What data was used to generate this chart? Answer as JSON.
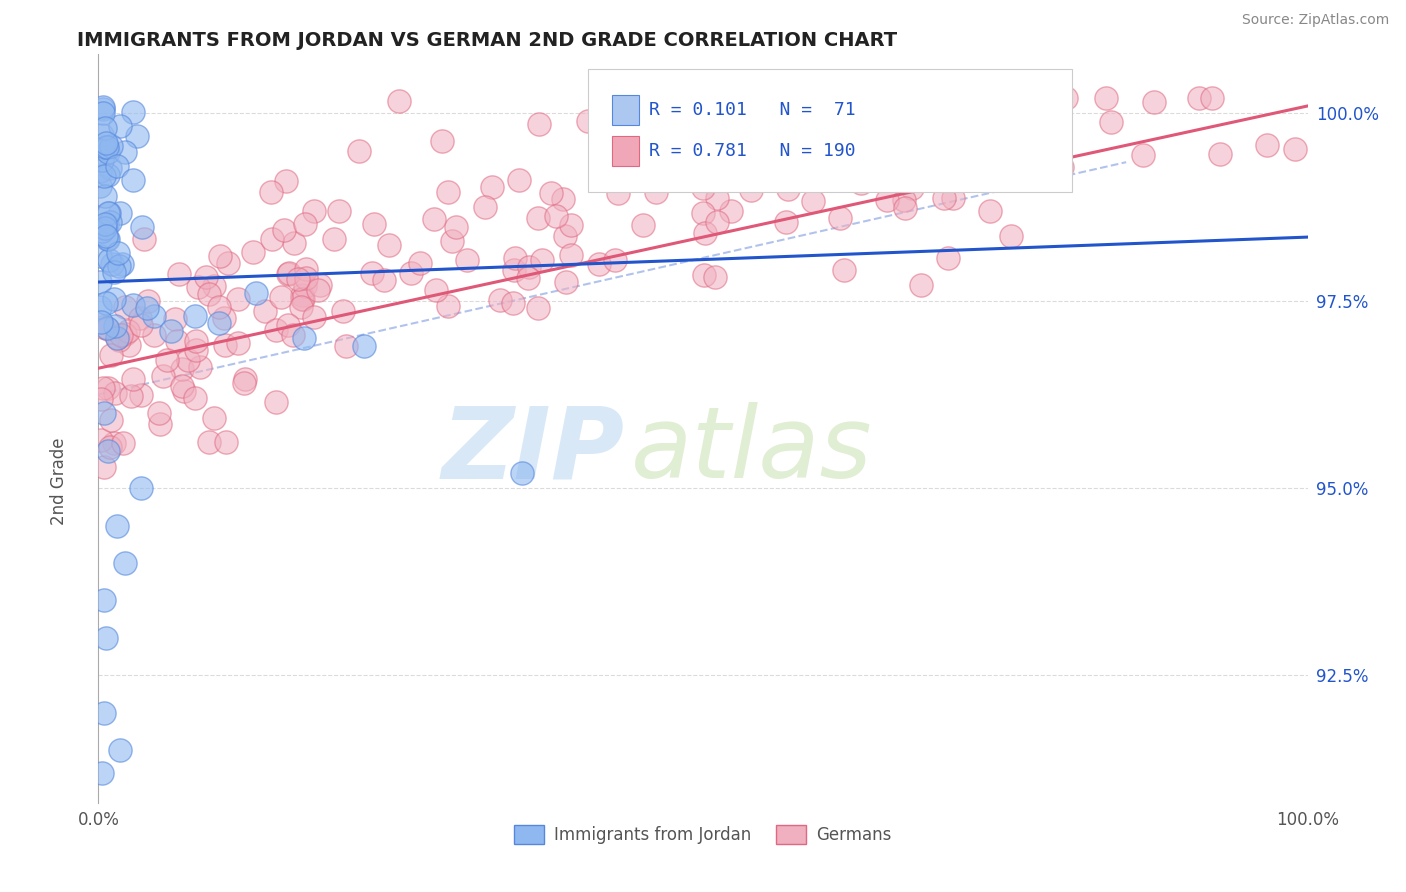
{
  "title": "IMMIGRANTS FROM JORDAN VS GERMAN 2ND GRADE CORRELATION CHART",
  "source": "Source: ZipAtlas.com",
  "ylabel": "2nd Grade",
  "ytick_labels": [
    "92.5%",
    "95.0%",
    "97.5%",
    "100.0%"
  ],
  "ytick_values": [
    0.925,
    0.95,
    0.975,
    1.0
  ],
  "watermark_zip": "ZIP",
  "watermark_atlas": "atlas",
  "legend_entry1": {
    "label": "Immigrants from Jordan",
    "color": "#adc8f0",
    "R": 0.101,
    "N": 71
  },
  "legend_entry2": {
    "label": "Germans",
    "color": "#f0a8b8",
    "R": 0.781,
    "N": 190
  },
  "blue_line_color": "#2255cc",
  "pink_line_color": "#e05878",
  "blue_dot_fill": "#90b8f0",
  "blue_dot_edge": "#5588dd",
  "pink_dot_fill": "#f0b0c0",
  "pink_dot_edge": "#e06880",
  "background_color": "#ffffff",
  "grid_color": "#d8d8d8",
  "title_color": "#222222",
  "axis_label_color": "#555555",
  "legend_text_color": "#2255cc",
  "source_color": "#888888",
  "xlim": [
    0.0,
    1.0
  ],
  "ylim": [
    0.908,
    1.008
  ]
}
